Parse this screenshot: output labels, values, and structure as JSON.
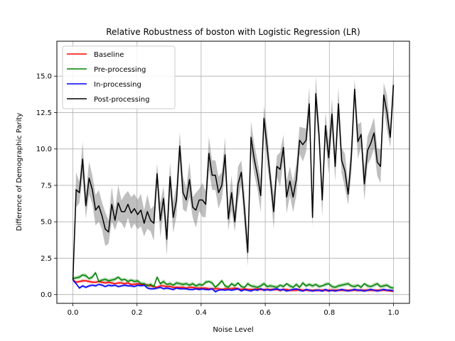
{
  "chart_data": {
    "type": "line",
    "title": "Relative Robustness of boston with Logistic Regression (LR)",
    "xlabel": "Noise Level",
    "ylabel": "Difference of Demographic Parity",
    "xlim": [
      -0.05,
      1.05
    ],
    "ylim": [
      -0.6,
      17.4
    ],
    "xticks": [
      "0.0",
      "0.2",
      "0.4",
      "0.6",
      "0.8",
      "1.0"
    ],
    "yticks": [
      "0.0",
      "2.5",
      "5.0",
      "7.5",
      "10.0",
      "12.5",
      "15.0"
    ],
    "grid": true,
    "legend": "upper-left",
    "x": [
      0.0,
      0.0101,
      0.0202,
      0.0303,
      0.0404,
      0.0505,
      0.0606,
      0.0707,
      0.0808,
      0.0909,
      0.101,
      0.1111,
      0.1212,
      0.1313,
      0.1414,
      0.1515,
      0.1616,
      0.1717,
      0.1818,
      0.1919,
      0.202,
      0.2121,
      0.2222,
      0.2323,
      0.2424,
      0.2525,
      0.2626,
      0.2727,
      0.2828,
      0.2929,
      0.303,
      0.3131,
      0.3232,
      0.3333,
      0.3434,
      0.3535,
      0.3636,
      0.3737,
      0.3838,
      0.3939,
      0.404,
      0.4141,
      0.4242,
      0.4343,
      0.4444,
      0.4545,
      0.4646,
      0.4747,
      0.4848,
      0.4949,
      0.5051,
      0.5152,
      0.5253,
      0.5354,
      0.5455,
      0.5556,
      0.5657,
      0.5758,
      0.5859,
      0.596,
      0.6061,
      0.6162,
      0.6263,
      0.6364,
      0.6465,
      0.6566,
      0.6667,
      0.6768,
      0.6869,
      0.697,
      0.7071,
      0.7172,
      0.7273,
      0.7374,
      0.7475,
      0.7576,
      0.7677,
      0.7778,
      0.7879,
      0.798,
      0.8081,
      0.8182,
      0.8283,
      0.8384,
      0.8485,
      0.8586,
      0.8687,
      0.8788,
      0.8889,
      0.899,
      0.9091,
      0.9192,
      0.9293,
      0.9394,
      0.9495,
      0.9596,
      0.9697,
      0.9798,
      0.9899,
      1.0
    ],
    "series": [
      {
        "name": "Baseline",
        "color": "#ff0000",
        "values": [
          1.0,
          0.85,
          0.9,
          0.95,
          0.95,
          0.9,
          0.85,
          0.85,
          0.9,
          0.85,
          0.8,
          0.85,
          0.8,
          0.75,
          0.8,
          0.8,
          0.75,
          0.8,
          0.7,
          0.7,
          0.75,
          0.7,
          0.7,
          0.65,
          0.6,
          0.55,
          0.5,
          0.6,
          0.6,
          0.55,
          0.55,
          0.5,
          0.5,
          0.5,
          0.5,
          0.45,
          0.5,
          0.5,
          0.45,
          0.45,
          0.45,
          0.45,
          0.4,
          0.4,
          0.4,
          0.4,
          0.35,
          0.4,
          0.4,
          0.4,
          0.45,
          0.4,
          0.35,
          0.4,
          0.35,
          0.35,
          0.35,
          0.4,
          0.35,
          0.35,
          0.35,
          0.35,
          0.35,
          0.35,
          0.3,
          0.35,
          0.35,
          0.3,
          0.3,
          0.3,
          0.35,
          0.3,
          0.3,
          0.3,
          0.3,
          0.3,
          0.3,
          0.3,
          0.3,
          0.3,
          0.3,
          0.3,
          0.3,
          0.3,
          0.3,
          0.3,
          0.3,
          0.3,
          0.3,
          0.3,
          0.3,
          0.3,
          0.3,
          0.3,
          0.3,
          0.3,
          0.3,
          0.3,
          0.25,
          0.25
        ],
        "band": 0.12
      },
      {
        "name": "Pre-processing",
        "color": "#008000",
        "values": [
          1.1,
          1.15,
          1.2,
          1.35,
          1.3,
          1.1,
          1.2,
          1.5,
          0.9,
          1.0,
          1.05,
          0.95,
          1.0,
          1.05,
          1.2,
          1.0,
          1.05,
          0.9,
          1.0,
          0.9,
          0.95,
          0.75,
          0.75,
          0.6,
          0.7,
          0.55,
          1.2,
          0.75,
          0.9,
          0.7,
          0.75,
          0.65,
          0.8,
          0.75,
          0.7,
          0.75,
          0.65,
          0.75,
          0.6,
          0.7,
          0.65,
          0.85,
          0.9,
          0.8,
          0.5,
          0.7,
          0.95,
          0.6,
          0.5,
          0.75,
          0.6,
          0.8,
          0.55,
          0.5,
          0.75,
          0.6,
          0.55,
          0.5,
          0.6,
          0.75,
          0.55,
          0.6,
          0.55,
          0.5,
          0.65,
          0.55,
          0.75,
          0.6,
          0.5,
          0.7,
          0.5,
          0.8,
          0.6,
          0.7,
          0.6,
          0.7,
          0.55,
          0.6,
          0.7,
          0.75,
          0.55,
          0.5,
          0.6,
          0.65,
          0.7,
          0.75,
          0.6,
          0.55,
          0.65,
          0.5,
          0.75,
          0.6,
          0.55,
          0.65,
          0.75,
          0.55,
          0.6,
          0.65,
          0.5,
          0.45
        ],
        "band": 0.15
      },
      {
        "name": "In-processing",
        "color": "#0000ff",
        "values": [
          1.0,
          0.75,
          0.45,
          0.6,
          0.5,
          0.6,
          0.65,
          0.6,
          0.7,
          0.65,
          0.55,
          0.65,
          0.6,
          0.65,
          0.55,
          0.6,
          0.65,
          0.6,
          0.6,
          0.55,
          0.65,
          0.6,
          0.65,
          0.45,
          0.4,
          0.4,
          0.45,
          0.5,
          0.4,
          0.45,
          0.4,
          0.35,
          0.45,
          0.4,
          0.4,
          0.4,
          0.35,
          0.35,
          0.4,
          0.35,
          0.4,
          0.35,
          0.35,
          0.4,
          0.2,
          0.3,
          0.35,
          0.3,
          0.35,
          0.3,
          0.35,
          0.4,
          0.25,
          0.35,
          0.3,
          0.25,
          0.35,
          0.3,
          0.4,
          0.3,
          0.35,
          0.3,
          0.35,
          0.4,
          0.3,
          0.35,
          0.25,
          0.3,
          0.35,
          0.4,
          0.3,
          0.25,
          0.35,
          0.3,
          0.25,
          0.3,
          0.3,
          0.25,
          0.35,
          0.25,
          0.3,
          0.25,
          0.3,
          0.35,
          0.3,
          0.25,
          0.3,
          0.35,
          0.3,
          0.3,
          0.25,
          0.3,
          0.35,
          0.3,
          0.25,
          0.3,
          0.35,
          0.3,
          0.3,
          0.25
        ],
        "band": 0.1
      },
      {
        "name": "Post-processing",
        "color": "#000000",
        "values": [
          1.0,
          7.2,
          7.0,
          9.3,
          6.1,
          8.0,
          7.2,
          5.8,
          6.1,
          5.4,
          4.5,
          4.3,
          6.2,
          5.1,
          6.3,
          5.7,
          5.7,
          6.2,
          5.6,
          5.9,
          5.5,
          5.8,
          4.9,
          5.7,
          5.1,
          4.9,
          8.3,
          5.1,
          6.6,
          3.8,
          8.1,
          5.3,
          6.5,
          10.2,
          7.0,
          6.5,
          7.9,
          6.0,
          5.8,
          6.5,
          6.5,
          6.2,
          9.7,
          8.2,
          8.2,
          7.0,
          7.5,
          9.6,
          5.2,
          7.0,
          5.0,
          7.6,
          8.4,
          5.8,
          2.9,
          10.8,
          9.3,
          8.2,
          6.8,
          12.1,
          10.1,
          7.9,
          5.7,
          8.8,
          8.6,
          10.1,
          6.7,
          7.8,
          6.7,
          7.9,
          10.6,
          10.3,
          10.6,
          13.1,
          5.3,
          13.8,
          11.0,
          6.5,
          11.6,
          9.4,
          12.4,
          8.8,
          13.1,
          9.2,
          8.5,
          6.9,
          9.5,
          14.1,
          10.5,
          11.0,
          7.6,
          9.9,
          10.4,
          11.1,
          9.1,
          8.8,
          13.7,
          12.5,
          10.8,
          14.4
        ],
        "band": 1.2
      }
    ]
  }
}
